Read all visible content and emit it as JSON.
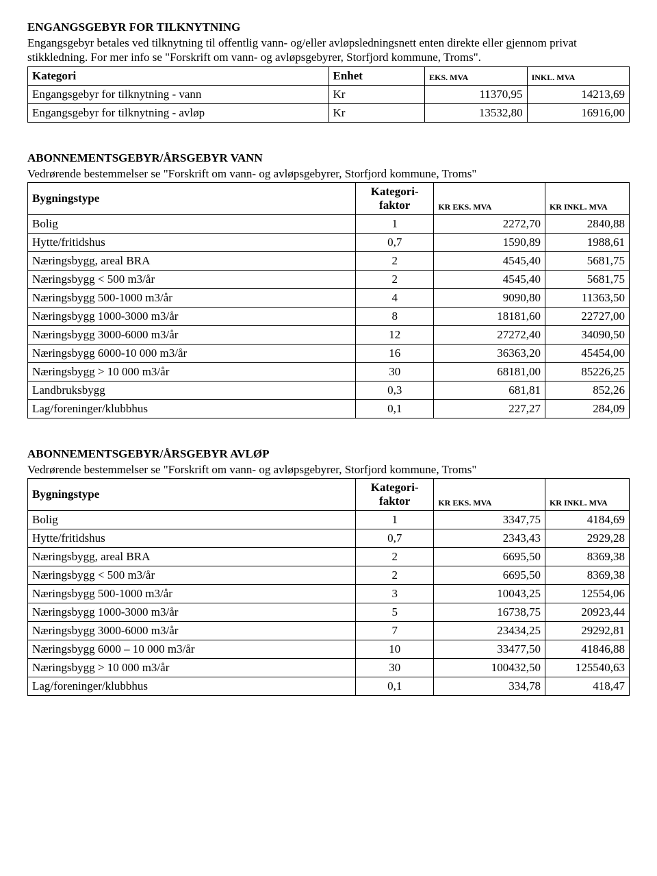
{
  "section1": {
    "heading": "ENGANGSGEBYR FOR TILKNYTNING",
    "desc": "Engangsgebyr betales ved tilknytning til offentlig vann- og/eller avløpsledningsnett enten direkte eller gjennom privat stikkledning. For mer info se \"Forskrift om vann- og avløpsgebyrer, Storfjord kommune, Troms\".",
    "table": {
      "columns": [
        "Kategori",
        "Enhet",
        "EKS. MVA",
        "INKL. MVA"
      ],
      "rows": [
        [
          "Engangsgebyr for tilknytning - vann",
          "Kr",
          "11370,95",
          "14213,69"
        ],
        [
          "Engangsgebyr for tilknytning - avløp",
          "Kr",
          "13532,80",
          "16916,00"
        ]
      ]
    }
  },
  "section2": {
    "heading": "ABONNEMENTSGEBYR/ÅRSGEBYR VANN",
    "desc": "Vedrørende bestemmelser se \"Forskrift om vann- og avløpsgebyrer, Storfjord kommune, Troms\"",
    "table": {
      "columns": [
        "Bygningstype",
        "Kategori-faktor",
        "KR EKS. MVA",
        "KR INKL. MVA"
      ],
      "rows": [
        [
          "Bolig",
          "1",
          "2272,70",
          "2840,88"
        ],
        [
          "Hytte/fritidshus",
          "0,7",
          "1590,89",
          "1988,61"
        ],
        [
          "Næringsbygg, areal BRA",
          "2",
          "4545,40",
          "5681,75"
        ],
        [
          "Næringsbygg < 500 m3/år",
          "2",
          "4545,40",
          "5681,75"
        ],
        [
          "Næringsbygg 500-1000 m3/år",
          "4",
          "9090,80",
          "11363,50"
        ],
        [
          "Næringsbygg 1000-3000 m3/år",
          "8",
          "18181,60",
          "22727,00"
        ],
        [
          "Næringsbygg 3000-6000 m3/år",
          "12",
          "27272,40",
          "34090,50"
        ],
        [
          "Næringsbygg 6000-10 000 m3/år",
          "16",
          "36363,20",
          "45454,00"
        ],
        [
          "Næringsbygg > 10 000 m3/år",
          "30",
          "68181,00",
          "85226,25"
        ],
        [
          "Landbruksbygg",
          "0,3",
          "681,81",
          "852,26"
        ],
        [
          "Lag/foreninger/klubbhus",
          "0,1",
          "227,27",
          "284,09"
        ]
      ]
    }
  },
  "section3": {
    "heading": "ABONNEMENTSGEBYR/ÅRSGEBYR AVLØP",
    "desc": "Vedrørende bestemmelser se \"Forskrift om vann- og avløpsgebyrer, Storfjord kommune, Troms\"",
    "table": {
      "columns": [
        "Bygningstype",
        "Kategori-faktor",
        "KR EKS. MVA",
        "KR INKL. MVA"
      ],
      "rows": [
        [
          "Bolig",
          "1",
          "3347,75",
          "4184,69"
        ],
        [
          "Hytte/fritidshus",
          "0,7",
          "2343,43",
          "2929,28"
        ],
        [
          "Næringsbygg, areal BRA",
          "2",
          "6695,50",
          "8369,38"
        ],
        [
          "Næringsbygg < 500 m3/år",
          "2",
          "6695,50",
          "8369,38"
        ],
        [
          "Næringsbygg 500-1000 m3/år",
          "3",
          "10043,25",
          "12554,06"
        ],
        [
          "Næringsbygg 1000-3000 m3/år",
          "5",
          "16738,75",
          "20923,44"
        ],
        [
          "Næringsbygg 3000-6000 m3/år",
          "7",
          "23434,25",
          "29292,81"
        ],
        [
          "Næringsbygg 6000 – 10 000 m3/år",
          "10",
          "33477,50",
          "41846,88"
        ],
        [
          "Næringsbygg > 10 000 m3/år",
          "30",
          "100432,50",
          "125540,63"
        ],
        [
          "Lag/foreninger/klubbhus",
          "0,1",
          "334,78",
          "418,47"
        ]
      ]
    }
  }
}
